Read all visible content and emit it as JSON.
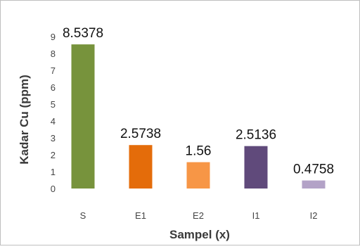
{
  "chart_data": {
    "type": "bar",
    "categories": [
      "S",
      "E1",
      "E2",
      "I1",
      "I2"
    ],
    "values": [
      8.5378,
      2.5738,
      1.56,
      2.5136,
      0.4758
    ],
    "data_labels": [
      "8.5378",
      "2.5738",
      "1.56",
      "2.5136",
      "0.4758"
    ],
    "bar_colors": [
      "#77933c",
      "#e46c0a",
      "#f79646",
      "#604a7b",
      "#b3a2c7"
    ],
    "xlabel": "Sampel (x)",
    "ylabel": "Kadar Cu (ppm)",
    "ylim": [
      0,
      9
    ],
    "yticks": [
      "0",
      "1",
      "2",
      "3",
      "4",
      "5",
      "6",
      "7",
      "8",
      "9"
    ],
    "grid": false,
    "legend": "none"
  }
}
